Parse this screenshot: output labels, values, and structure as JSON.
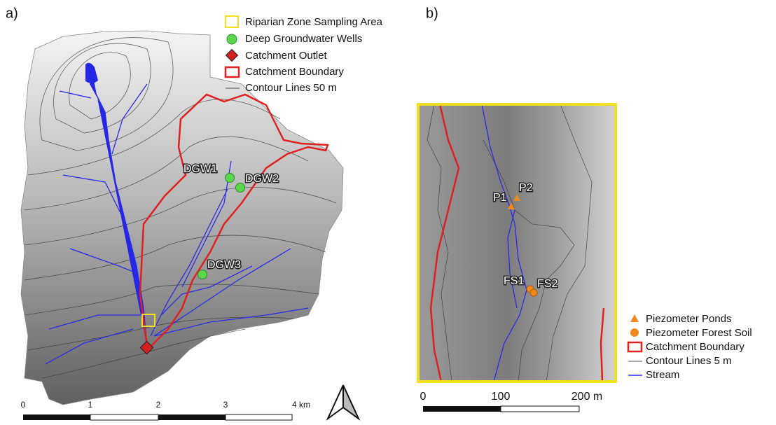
{
  "panel_a": {
    "label": "a)",
    "legend": [
      "Riparian Zone Sampling Area",
      "Deep Groundwater Wells",
      "Catchment Outlet",
      "Catchment Boundary",
      "Contour Lines 50 m"
    ],
    "sites": [
      "DGW1",
      "DGW2",
      "DGW3"
    ],
    "scale_bar": [
      "0",
      "1",
      "2",
      "3",
      "4 km"
    ]
  },
  "panel_b": {
    "label": "b)",
    "sites": [
      "P1",
      "P2",
      "FS1",
      "FS2"
    ],
    "legend": [
      "Piezometer Ponds",
      "Piezometer Forest Soil",
      "Catchment Boundary",
      "Contour Lines 5 m",
      "Stream"
    ],
    "scale_bar": [
      "0",
      "100",
      "200 m"
    ]
  }
}
